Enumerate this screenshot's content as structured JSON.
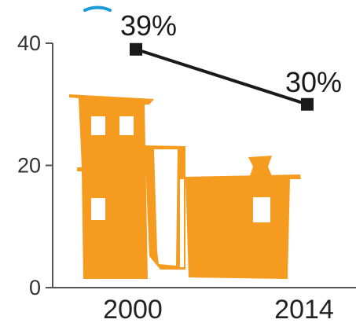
{
  "chart_data": {
    "type": "line",
    "title": "",
    "xlabel": "",
    "ylabel": "",
    "x": [
      "2000",
      "2014"
    ],
    "series": [
      {
        "values": [
          39,
          30
        ],
        "labels": [
          "39%",
          "30%"
        ]
      }
    ],
    "ylim": [
      0,
      40
    ],
    "yticks": [
      0,
      20,
      40
    ],
    "grid": false,
    "legend": "none",
    "colors": {
      "line": "#1a1a1a",
      "marker": "#1a1a1a",
      "axis": "#555555",
      "illustration": "#f59b1f",
      "accent": "#1a9ad6"
    },
    "decoration": "orange-buildings-icon"
  }
}
